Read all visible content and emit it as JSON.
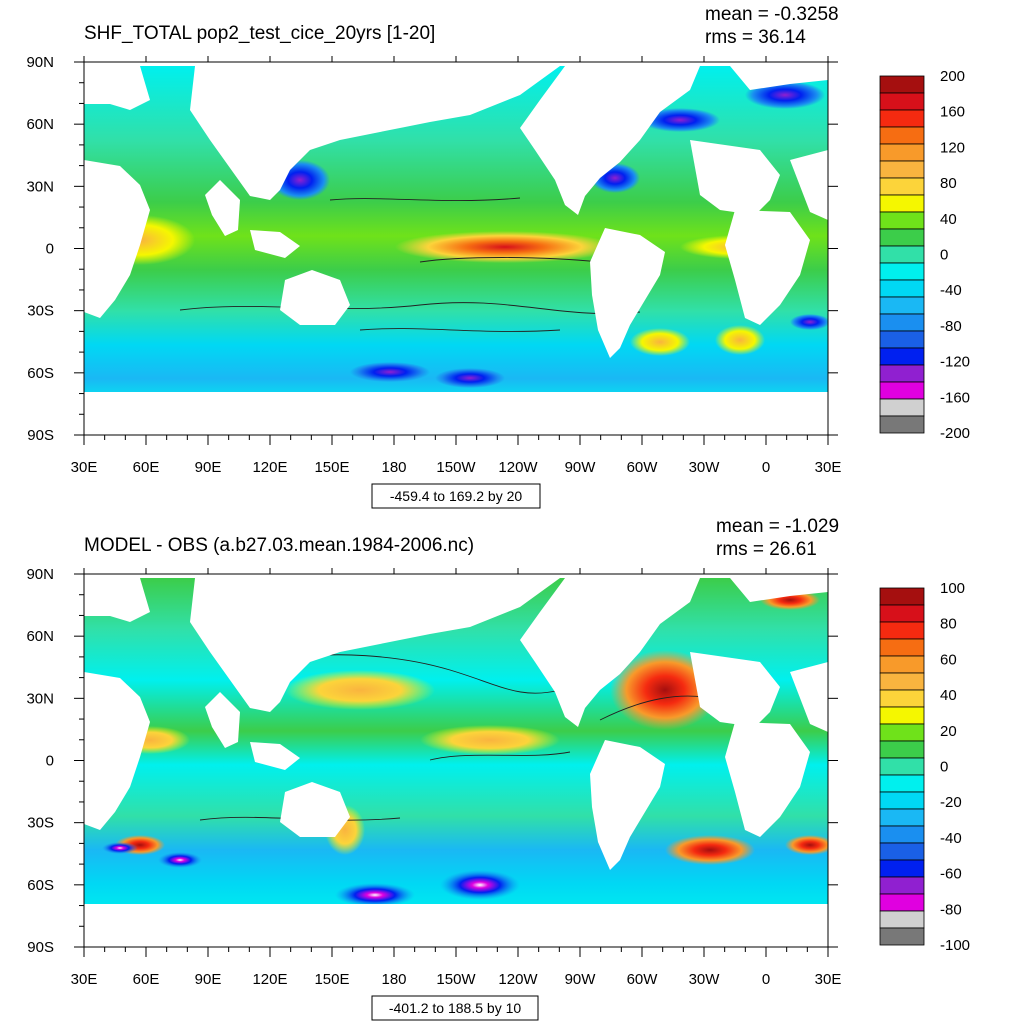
{
  "chart_data": [
    {
      "type": "heatmap",
      "title": "SHF_TOTAL pop2_test_cice_20yrs [1-20]",
      "stats": {
        "mean_label": "mean = -0.3258",
        "rms_label": "rms = 36.14"
      },
      "xticks": [
        "30E",
        "60E",
        "90E",
        "120E",
        "150E",
        "180",
        "150W",
        "120W",
        "90W",
        "60W",
        "30W",
        "0",
        "30E"
      ],
      "yticks": [
        "90N",
        "60N",
        "30N",
        "0",
        "30S",
        "60S",
        "90S"
      ],
      "xlim": [
        30,
        390
      ],
      "ylim": [
        -90,
        90
      ],
      "colorbar": {
        "labels": [
          "200",
          "160",
          "120",
          "80",
          "40",
          "0",
          "-40",
          "-80",
          "-120",
          "-160",
          "-200"
        ],
        "colors": [
          "#a50f0f",
          "#d7101a",
          "#f52a10",
          "#f66d12",
          "#f89a2a",
          "#f9b43f",
          "#fcd43a",
          "#f5f700",
          "#6fe21a",
          "#3ccd4a",
          "#31e0a8",
          "#00f0ee",
          "#00d8f4",
          "#1ab8f4",
          "#1a8ff0",
          "#1a60e6",
          "#0020f0",
          "#9020d0",
          "#e000e0",
          "#d0d0d0",
          "#787878"
        ]
      },
      "contour_info": "-459.4 to 169.2 by 20"
    },
    {
      "type": "heatmap",
      "title": "MODEL - OBS (a.b27.03.mean.1984-2006.nc)",
      "stats": {
        "mean_label": "mean = -1.029",
        "rms_label": "rms = 26.61"
      },
      "xticks": [
        "30E",
        "60E",
        "90E",
        "120E",
        "150E",
        "180",
        "150W",
        "120W",
        "90W",
        "60W",
        "30W",
        "0",
        "30E"
      ],
      "yticks": [
        "90N",
        "60N",
        "30N",
        "0",
        "30S",
        "60S",
        "90S"
      ],
      "xlim": [
        30,
        390
      ],
      "ylim": [
        -90,
        90
      ],
      "colorbar": {
        "labels": [
          "100",
          "80",
          "60",
          "40",
          "20",
          "0",
          "-20",
          "-40",
          "-60",
          "-80",
          "-100"
        ],
        "colors": [
          "#a50f0f",
          "#d7101a",
          "#f52a10",
          "#f66d12",
          "#f89a2a",
          "#f9b43f",
          "#fcd43a",
          "#f5f700",
          "#6fe21a",
          "#3ccd4a",
          "#31e0a8",
          "#00f0ee",
          "#00d8f4",
          "#1ab8f4",
          "#1a8ff0",
          "#1a60e6",
          "#0020f0",
          "#9020d0",
          "#e000e0",
          "#d0d0d0",
          "#787878"
        ]
      },
      "contour_info": "-401.2 to 188.5 by 10"
    }
  ]
}
